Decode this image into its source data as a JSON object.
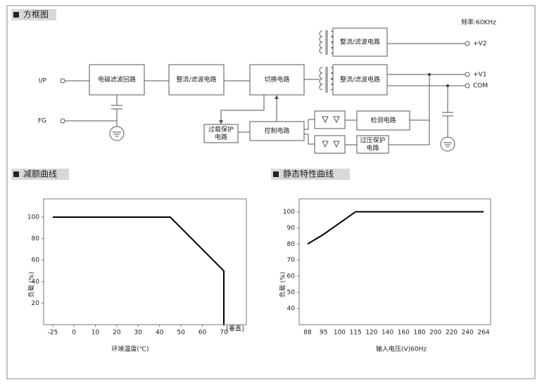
{
  "header": {
    "title": "方框图",
    "frequency": "频率:60KHz"
  },
  "block_diagram": {
    "nodes": [
      {
        "lines": [
          "电磁滤波回路"
        ]
      },
      {
        "lines": [
          "整流/滤波电路"
        ]
      },
      {
        "lines": [
          "切换电路"
        ]
      },
      {
        "lines": [
          "整流/滤波电路"
        ]
      },
      {
        "lines": [
          "整流/滤波电路"
        ]
      },
      {
        "lines": [
          "过载保护",
          "电路"
        ]
      },
      {
        "lines": [
          "控制电路"
        ]
      },
      {
        "lines": [
          "检测电路"
        ]
      },
      {
        "lines": [
          "过压保护",
          "电路"
        ]
      }
    ],
    "ports": [
      "I/P",
      "FG",
      "+V2",
      "+V1",
      "COM"
    ]
  },
  "chart_data": [
    {
      "type": "line",
      "title": "减额曲线",
      "x": [
        -25,
        45,
        70,
        70
      ],
      "values": [
        100,
        100,
        50,
        0
      ],
      "color": "#000000",
      "xlim": [
        -30,
        80
      ],
      "ylim": [
        0,
        117
      ],
      "xticks": [
        -25,
        0,
        10,
        20,
        30,
        40,
        50,
        60,
        70
      ],
      "yticks": [
        20,
        40,
        60,
        80,
        100
      ],
      "xlabel": "环境温度(℃)",
      "ylabel": "负载 (%)",
      "annotation": "[垂直]"
    },
    {
      "type": "line",
      "title": "静态特性曲线",
      "categories": [
        "88",
        "95",
        "100",
        "115",
        "120",
        "140",
        "160",
        "180",
        "200",
        "220",
        "240",
        "264"
      ],
      "values": [
        80,
        86,
        93,
        100,
        100,
        100,
        100,
        100,
        100,
        100,
        100,
        100
      ],
      "color": "#000000",
      "ylim": [
        30,
        108
      ],
      "yticks": [
        40,
        50,
        60,
        70,
        80,
        90,
        100
      ],
      "xlabel": "输入电压(V)60Hz",
      "ylabel": "负载 (%)"
    }
  ]
}
